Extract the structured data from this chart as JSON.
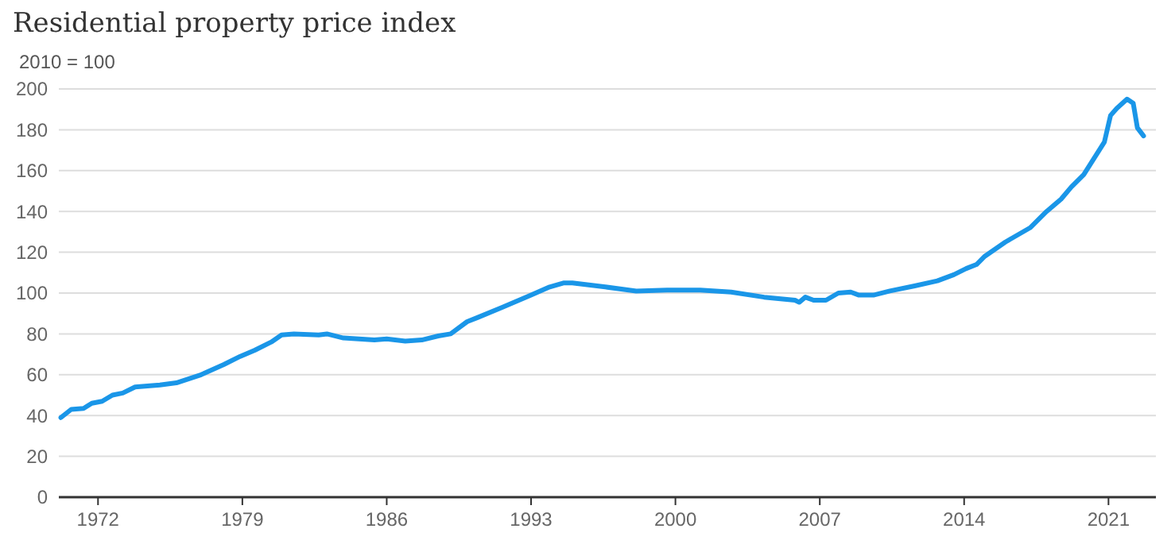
{
  "chart_data": {
    "type": "line",
    "title": "Residential property price index",
    "ylabel": "2010 = 100",
    "xlim": [
      1970.1,
      2023.3
    ],
    "xticks": [
      1972,
      1979,
      1986,
      1993,
      2000,
      2007,
      2014,
      2021
    ],
    "ylim": [
      0,
      200
    ],
    "yticks": [
      0,
      20,
      40,
      60,
      80,
      100,
      120,
      140,
      160,
      180,
      200
    ],
    "grid": "y",
    "marker": "none",
    "line_style": "solid",
    "series": [
      {
        "color": "#1a96e8",
        "x": [
          1970.2,
          1970.7,
          1971.3,
          1971.7,
          1972.2,
          1972.7,
          1973.2,
          1973.8,
          1975.0,
          1975.8,
          1977.0,
          1978.1,
          1978.9,
          1979.6,
          1980.4,
          1980.9,
          1981.5,
          1982.7,
          1983.1,
          1983.9,
          1985.4,
          1986.0,
          1986.9,
          1987.7,
          1988.5,
          1989.1,
          1989.9,
          1990.4,
          1991.6,
          1993.0,
          1993.9,
          1994.6,
          1995.0,
          1996.6,
          1998.1,
          1999.6,
          2001.2,
          2002.7,
          2004.3,
          2005.8,
          2006.0,
          2006.3,
          2006.7,
          2007.3,
          2007.9,
          2008.5,
          2008.9,
          2009.6,
          2010.4,
          2011.6,
          2012.7,
          2013.5,
          2014.1,
          2014.6,
          2015.0,
          2016.0,
          2017.2,
          2018.0,
          2018.7,
          2019.2,
          2019.8,
          2020.3,
          2020.8,
          2021.1,
          2021.4,
          2021.9,
          2022.2,
          2022.4,
          2022.7
        ],
        "values": [
          39,
          43,
          43.5,
          46,
          47,
          50,
          51,
          54,
          55,
          56,
          60,
          65,
          69,
          72,
          76,
          79.5,
          80,
          79.5,
          80,
          78,
          77,
          77.5,
          76.5,
          77,
          79,
          80,
          86,
          88,
          93,
          99,
          103,
          105,
          105,
          103,
          101,
          101.5,
          101.5,
          100.5,
          98,
          96.5,
          95.5,
          98,
          96.5,
          96.5,
          100,
          100.5,
          99,
          99,
          101,
          103.5,
          106,
          109,
          112,
          114,
          118,
          125,
          132,
          140,
          146,
          152,
          158,
          166,
          174,
          187,
          190.5,
          195,
          193,
          181,
          177
        ]
      }
    ]
  }
}
